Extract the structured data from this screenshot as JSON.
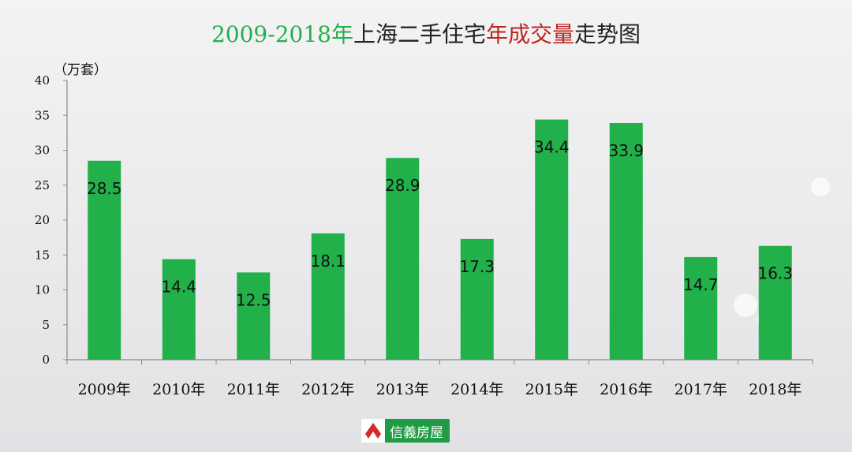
{
  "title": {
    "part1": "2009-2018年",
    "part2": "上海二手住宅",
    "part3": "年成交量",
    "part4": "走势图"
  },
  "unit_label": "（万套）",
  "logo_text": "信義房屋",
  "colors": {
    "bar": "#22b04a",
    "title_green": "#22b04a",
    "title_red": "#c0241f"
  },
  "chart_data": {
    "type": "bar",
    "categories": [
      "2009年",
      "2010年",
      "2011年",
      "2012年",
      "2013年",
      "2014年",
      "2015年",
      "2016年",
      "2017年",
      "2018年"
    ],
    "values": [
      28.5,
      14.4,
      12.5,
      18.1,
      28.9,
      17.3,
      34.4,
      33.9,
      14.7,
      16.3
    ],
    "ylim": [
      0,
      40
    ],
    "yticks": [
      0,
      5,
      10,
      15,
      20,
      25,
      30,
      35,
      40
    ],
    "ylabel": "（万套）",
    "grid": false,
    "legend": "none"
  }
}
